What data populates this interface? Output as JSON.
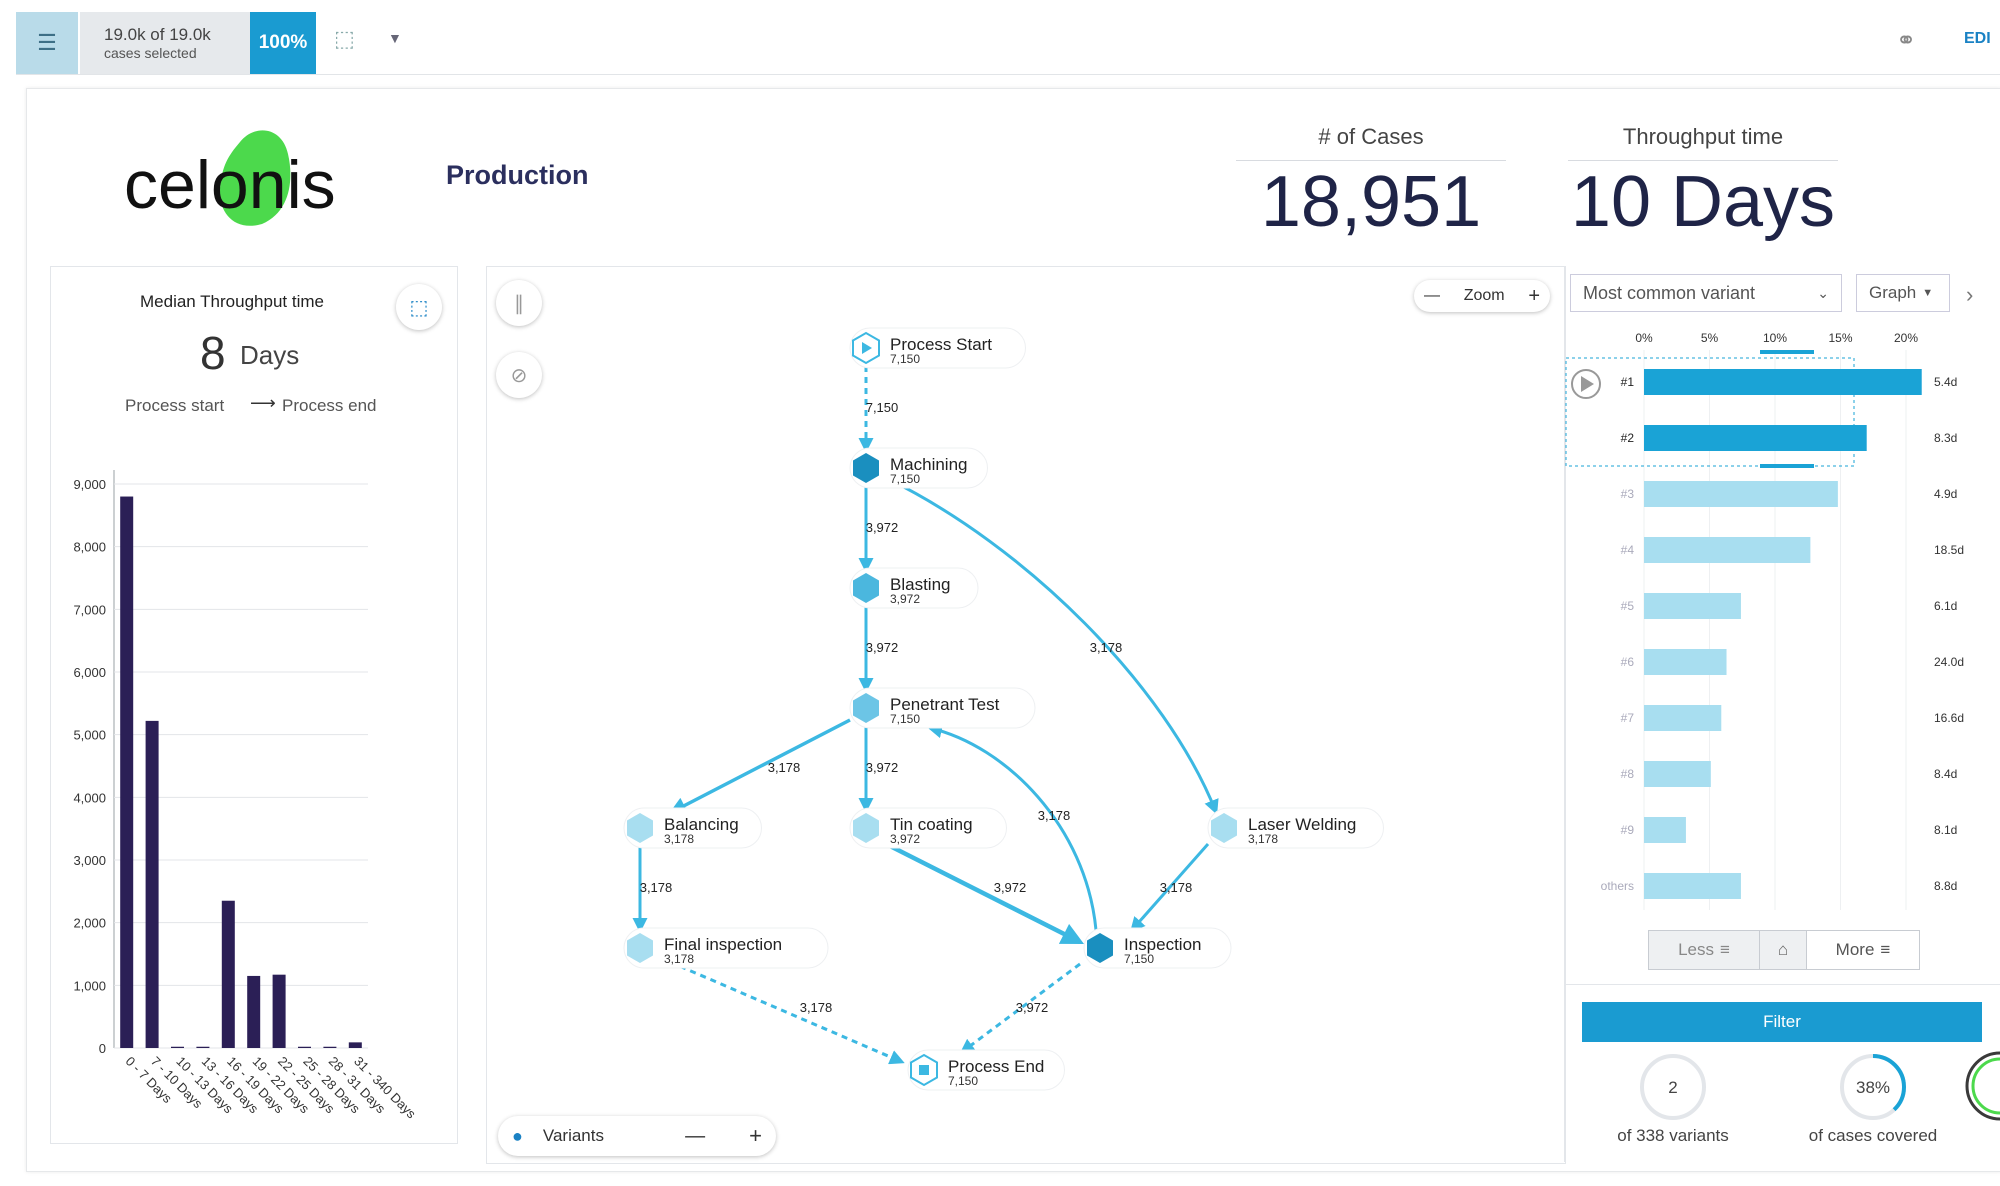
{
  "topbar": {
    "cases_selected_main": "19.0k of 19.0k",
    "cases_selected_sub": "cases selected",
    "percent": "100%",
    "edit_label": "EDI"
  },
  "header": {
    "logo_text": "celonis",
    "title": "Production",
    "kpis": [
      {
        "label": "# of Cases",
        "value": "18,951"
      },
      {
        "label": "Throughput time",
        "value": "10 Days"
      }
    ]
  },
  "throughput": {
    "title": "Median Throughput time",
    "value": "8",
    "unit": "Days",
    "from": "Process start",
    "to": "Process end"
  },
  "chart_data": {
    "type": "bar",
    "categories": [
      "0 - 7 Days",
      "7 - 10 Days",
      "10 - 13 Days",
      "13 - 16 Days",
      "16 - 19 Days",
      "19 - 22 Days",
      "22 - 25 Days",
      "25 - 28 Days",
      "28 - 31 Days",
      "31 - 340 Days"
    ],
    "values": [
      8800,
      5220,
      20,
      20,
      2350,
      1150,
      1170,
      20,
      20,
      90
    ],
    "ylim": [
      0,
      9000
    ],
    "yticks": [
      "0",
      "1,000",
      "2,000",
      "3,000",
      "4,000",
      "5,000",
      "6,000",
      "7,000",
      "8,000",
      "9,000"
    ],
    "bar_color": "#2b1f56",
    "grid": true
  },
  "process": {
    "zoom_label": "Zoom",
    "variants_label": "Variants",
    "nodes": [
      {
        "id": "start",
        "name": "Process Start",
        "count": "7,150"
      },
      {
        "id": "machining",
        "name": "Machining",
        "count": "7,150"
      },
      {
        "id": "blasting",
        "name": "Blasting",
        "count": "3,972"
      },
      {
        "id": "penetrant",
        "name": "Penetrant Test",
        "count": "7,150"
      },
      {
        "id": "balancing",
        "name": "Balancing",
        "count": "3,178"
      },
      {
        "id": "tin",
        "name": "Tin coating",
        "count": "3,972"
      },
      {
        "id": "laser",
        "name": "Laser Welding",
        "count": "3,178"
      },
      {
        "id": "final",
        "name": "Final inspection",
        "count": "3,178"
      },
      {
        "id": "inspection",
        "name": "Inspection",
        "count": "7,150"
      },
      {
        "id": "end",
        "name": "Process End",
        "count": "7,150"
      }
    ],
    "edge_labels": [
      "7,150",
      "3,972",
      "3,972",
      "3,178",
      "3,178",
      "3,972",
      "3,178",
      "3,972",
      "3,178",
      "3,178",
      "3,178",
      "3,972"
    ]
  },
  "variants": {
    "select_label": "Most common variant",
    "view_label": "Graph",
    "axis_ticks": [
      "0%",
      "5%",
      "10%",
      "15%",
      "20%"
    ],
    "rows": [
      {
        "label": "#1",
        "share": 21.2,
        "time": "5.4d",
        "selected": true
      },
      {
        "label": "#2",
        "share": 17.0,
        "time": "8.3d",
        "selected": true
      },
      {
        "label": "#3",
        "share": 14.8,
        "time": "4.9d",
        "selected": false
      },
      {
        "label": "#4",
        "share": 12.7,
        "time": "18.5d",
        "selected": false
      },
      {
        "label": "#5",
        "share": 7.4,
        "time": "6.1d",
        "selected": false
      },
      {
        "label": "#6",
        "share": 6.3,
        "time": "24.0d",
        "selected": false
      },
      {
        "label": "#7",
        "share": 5.9,
        "time": "16.6d",
        "selected": false
      },
      {
        "label": "#8",
        "share": 5.1,
        "time": "8.4d",
        "selected": false
      },
      {
        "label": "#9",
        "share": 3.2,
        "time": "8.1d",
        "selected": false
      },
      {
        "label": "others",
        "share": 7.4,
        "time": "8.8d",
        "selected": false
      }
    ],
    "less_label": "Less",
    "more_label": "More",
    "filter_label": "Filter",
    "variants_count": "2",
    "variants_caption": "of 338 variants",
    "covered_value": "38%",
    "covered_share": 0.38,
    "covered_caption": "of cases covered",
    "colors": {
      "selected": "#1aa3d6",
      "unselected": "#a8def0"
    }
  }
}
